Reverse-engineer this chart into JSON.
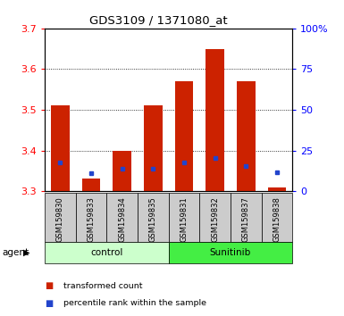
{
  "title": "GDS3109 / 1371080_at",
  "samples": [
    "GSM159830",
    "GSM159833",
    "GSM159834",
    "GSM159835",
    "GSM159831",
    "GSM159832",
    "GSM159837",
    "GSM159838"
  ],
  "group_of_each": [
    0,
    0,
    0,
    0,
    1,
    1,
    1,
    1
  ],
  "red_values": [
    3.51,
    3.33,
    3.4,
    3.51,
    3.57,
    3.65,
    3.57,
    3.31
  ],
  "blue_values": [
    3.37,
    3.345,
    3.355,
    3.355,
    3.37,
    3.382,
    3.362,
    3.347
  ],
  "y_min": 3.3,
  "y_max": 3.7,
  "y_ticks": [
    3.3,
    3.4,
    3.5,
    3.6,
    3.7
  ],
  "y2_ticks": [
    0,
    25,
    50,
    75,
    100
  ],
  "y2_labels": [
    "0",
    "25",
    "50",
    "75",
    "100%"
  ],
  "bar_color": "#cc2200",
  "blue_color": "#2244cc",
  "control_bg": "#ccffcc",
  "sunitinib_bg": "#44ee44",
  "xticklabel_bg": "#cccccc",
  "bar_width": 0.6,
  "group_names": [
    "control",
    "Sunitinib"
  ],
  "legend_labels": [
    "transformed count",
    "percentile rank within the sample"
  ]
}
